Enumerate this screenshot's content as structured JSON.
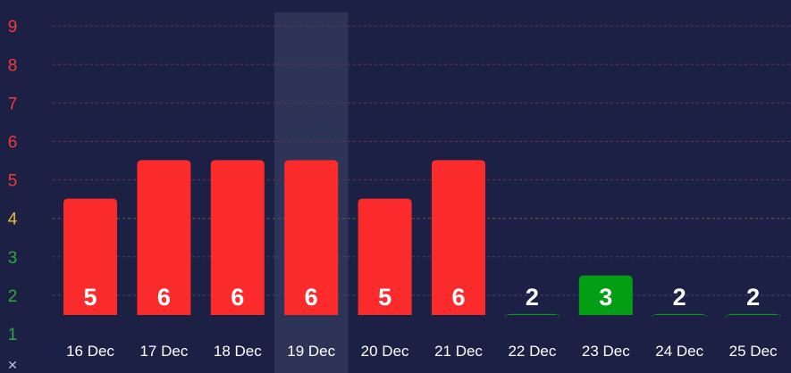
{
  "chart_data": {
    "type": "bar",
    "categories": [
      "16 Dec",
      "17 Dec",
      "18 Dec",
      "19 Dec",
      "20 Dec",
      "21 Dec",
      "22 Dec",
      "23 Dec",
      "24 Dec",
      "25 Dec"
    ],
    "values": [
      5,
      6,
      6,
      6,
      5,
      6,
      2,
      3,
      2,
      2
    ],
    "highlighted_category": "19 Dec",
    "y_ticks": [
      "1",
      "2",
      "3",
      "4",
      "5",
      "6",
      "7",
      "8",
      "9"
    ],
    "ylim": [
      1,
      9
    ],
    "grid": true,
    "title": "",
    "xlabel": "",
    "ylabel": "",
    "colors": {
      "background": "#1c2045",
      "bar_high": "#fc2b2b",
      "bar_low": "#049e15",
      "tick_high": "#f03a3a",
      "tick_mid": "#e9b93a",
      "tick_low": "#2fa83b",
      "grid_high": "#6a3050",
      "grid_mid": "#6a5a3e",
      "grid_low": "#3b4470",
      "highlight_band": "#2e3457",
      "text": "#ffffff"
    }
  },
  "corner_glyph": "✕"
}
